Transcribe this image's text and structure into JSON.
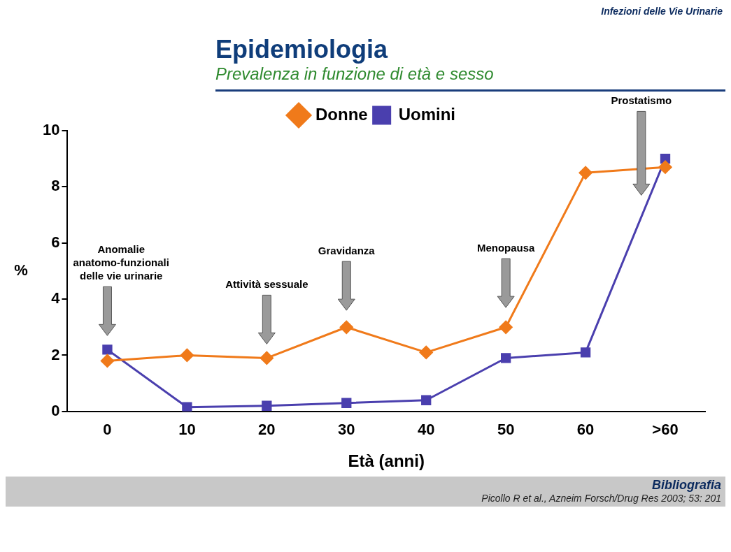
{
  "chart_data": {
    "type": "line",
    "title": "Epidemiologia",
    "subtitle": "Prevalenza in funzione di età e sesso",
    "xlabel": "Età (anni)",
    "ylabel": "%",
    "categories": [
      "0",
      "10",
      "20",
      "30",
      "40",
      "50",
      "60",
      ">60"
    ],
    "series": [
      {
        "name": "Donne",
        "color": "#f07a1a",
        "marker": "diamond",
        "values": [
          1.8,
          2.0,
          1.9,
          3.0,
          2.1,
          3.0,
          8.5,
          8.7
        ]
      },
      {
        "name": "Uomini",
        "color": "#4a3fae",
        "marker": "square",
        "values": [
          2.2,
          0.15,
          0.2,
          0.3,
          0.4,
          1.9,
          2.1,
          9.0
        ]
      }
    ],
    "ylim": [
      0,
      10
    ],
    "yticks": [
      0,
      2,
      4,
      6,
      8,
      10
    ],
    "grid": false,
    "legend": "top",
    "annotations": [
      "Infezioni delle Vie Urinarie",
      "Bibliografia",
      "Picollo R et al., Azneim Forsch/Drug Res 2003; 53: 201",
      "Anomalie anatomo-funzionali delle vie urinarie",
      "Attività sessuale",
      "Gravidanza",
      "Menopausa",
      "Prostatismo"
    ]
  }
}
